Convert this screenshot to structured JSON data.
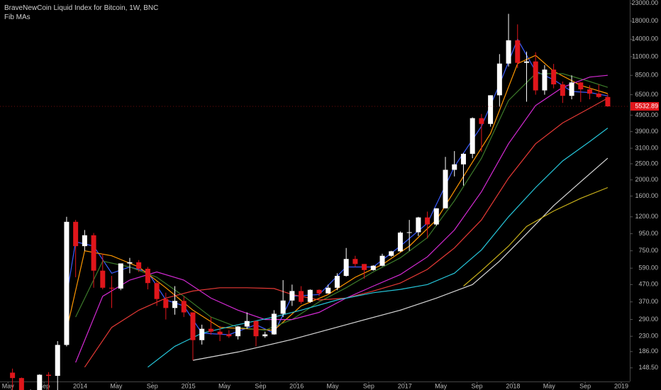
{
  "chart_data": {
    "type": "candlestick",
    "title": "BraveNewCoin Liquid Index for Bitcoin, 1W, BNC",
    "subtitle": "Fib MAs",
    "log_scale": true,
    "up_color": "#ffffff",
    "down_color": "#e0161b",
    "x": [
      "2013-05",
      "2013-06",
      "2013-07",
      "2013-08",
      "2013-09",
      "2013-10",
      "2013-11",
      "2013-12",
      "2014-01",
      "2014-02",
      "2014-03",
      "2014-04",
      "2014-05",
      "2014-06",
      "2014-07",
      "2014-08",
      "2014-09",
      "2014-10",
      "2014-11",
      "2014-12",
      "2015-01",
      "2015-02",
      "2015-03",
      "2015-04",
      "2015-05",
      "2015-06",
      "2015-07",
      "2015-08",
      "2015-09",
      "2015-10",
      "2015-11",
      "2015-12",
      "2016-01",
      "2016-02",
      "2016-03",
      "2016-04",
      "2016-05",
      "2016-06",
      "2016-07",
      "2016-08",
      "2016-09",
      "2016-10",
      "2016-11",
      "2016-12",
      "2017-01",
      "2017-02",
      "2017-03",
      "2017-04",
      "2017-05",
      "2017-06",
      "2017-07",
      "2017-08",
      "2017-09",
      "2017-10",
      "2017-11",
      "2017-12",
      "2018-01",
      "2018-02",
      "2018-03",
      "2018-04",
      "2018-05",
      "2018-06",
      "2018-07",
      "2018-08",
      "2018-09",
      "2018-10",
      "2018-11"
    ],
    "open": [
      139,
      129,
      97,
      106,
      135,
      133,
      204,
      1120,
      800,
      930,
      570,
      450,
      445,
      630,
      640,
      585,
      480,
      385,
      340,
      375,
      320,
      218,
      255,
      245,
      236,
      230,
      263,
      284,
      230,
      236,
      314,
      377,
      430,
      370,
      437,
      416,
      450,
      530,
      670,
      625,
      575,
      610,
      700,
      745,
      965,
      970,
      1190,
      1080,
      1350,
      2300,
      2480,
      2870,
      4700,
      4340,
      6450,
      10000,
      13800,
      10100,
      10300,
      6900,
      9200,
      7500,
      6400,
      7700,
      7000,
      6600,
      6300
    ],
    "high": [
      147,
      130,
      110,
      136,
      140,
      215,
      1200,
      1150,
      1000,
      960,
      720,
      530,
      630,
      680,
      660,
      600,
      490,
      420,
      460,
      400,
      320,
      270,
      300,
      265,
      250,
      265,
      320,
      285,
      245,
      330,
      500,
      470,
      460,
      440,
      440,
      470,
      550,
      780,
      700,
      625,
      615,
      720,
      750,
      980,
      1150,
      1200,
      1290,
      1350,
      2750,
      2980,
      2900,
      4750,
      4980,
      6450,
      11400,
      19900,
      17200,
      11800,
      11700,
      9800,
      9950,
      7800,
      8500,
      7750,
      7400,
      7500,
      6550
    ],
    "low": [
      90,
      88,
      65,
      100,
      85,
      105,
      200,
      520,
      750,
      450,
      440,
      340,
      435,
      550,
      560,
      440,
      350,
      290,
      310,
      300,
      165,
      205,
      235,
      215,
      225,
      220,
      255,
      200,
      225,
      235,
      300,
      350,
      360,
      365,
      400,
      415,
      435,
      525,
      600,
      510,
      570,
      605,
      690,
      740,
      750,
      920,
      890,
      1060,
      1350,
      2100,
      1850,
      2700,
      2950,
      4180,
      5500,
      9600,
      9400,
      5900,
      6500,
      6500,
      7100,
      5800,
      6100,
      5880,
      6100,
      6200,
      5500
    ],
    "close": [
      129,
      97,
      106,
      135,
      133,
      204,
      1120,
      800,
      930,
      570,
      450,
      445,
      630,
      640,
      585,
      480,
      385,
      340,
      375,
      320,
      218,
      255,
      245,
      236,
      230,
      263,
      284,
      230,
      236,
      314,
      377,
      430,
      370,
      437,
      416,
      450,
      530,
      670,
      625,
      575,
      610,
      700,
      745,
      965,
      970,
      1190,
      1080,
      1350,
      2300,
      2480,
      2870,
      4700,
      4340,
      6450,
      10000,
      13800,
      10100,
      10300,
      6900,
      9200,
      7500,
      6400,
      7700,
      7000,
      6600,
      6300,
      5532.89
    ],
    "last_price": 5532.89,
    "moving_averages": [
      {
        "color": "#3a5cff",
        "x": [
          "2013-11",
          "2013-12",
          "2014-02",
          "2014-04",
          "2014-06",
          "2014-08",
          "2014-10",
          "2014-12",
          "2015-02",
          "2015-05",
          "2015-08",
          "2015-10",
          "2015-12",
          "2016-03",
          "2016-06",
          "2016-09",
          "2016-12",
          "2017-03",
          "2017-06",
          "2017-09",
          "2017-11",
          "2018-01",
          "2018-03",
          "2018-05",
          "2018-07",
          "2018-09",
          "2018-11"
        ],
        "values": [
          400,
          850,
          800,
          550,
          600,
          560,
          380,
          350,
          240,
          235,
          270,
          240,
          400,
          410,
          600,
          600,
          800,
          1100,
          2400,
          4200,
          7500,
          14000,
          9000,
          8000,
          6800,
          6700,
          6400
        ]
      },
      {
        "color": "#ff9800",
        "x": [
          "2013-11",
          "2014-01",
          "2014-04",
          "2014-07",
          "2014-10",
          "2015-01",
          "2015-04",
          "2015-07",
          "2015-10",
          "2016-01",
          "2016-04",
          "2016-07",
          "2016-10",
          "2017-01",
          "2017-04",
          "2017-07",
          "2017-10",
          "2018-01",
          "2018-03",
          "2018-05",
          "2018-08",
          "2018-11"
        ],
        "values": [
          250,
          750,
          700,
          600,
          450,
          330,
          260,
          255,
          250,
          350,
          410,
          520,
          620,
          800,
          1150,
          2100,
          3800,
          10000,
          11200,
          9000,
          7400,
          6600
        ]
      },
      {
        "color": "#3c7a2a",
        "x": [
          "2013-12",
          "2014-03",
          "2014-06",
          "2014-09",
          "2014-12",
          "2015-03",
          "2015-06",
          "2015-09",
          "2015-12",
          "2016-03",
          "2016-06",
          "2016-09",
          "2016-12",
          "2017-03",
          "2017-06",
          "2017-09",
          "2017-12",
          "2018-03",
          "2018-06",
          "2018-09",
          "2018-11"
        ],
        "values": [
          300,
          650,
          600,
          520,
          400,
          300,
          260,
          250,
          290,
          370,
          450,
          560,
          680,
          900,
          1500,
          2700,
          6000,
          8700,
          8700,
          7800,
          7200
        ]
      },
      {
        "color": "#d42ad4",
        "x": [
          "2013-12",
          "2014-03",
          "2014-06",
          "2014-09",
          "2014-12",
          "2015-03",
          "2015-06",
          "2015-09",
          "2015-12",
          "2016-03",
          "2016-06",
          "2016-09",
          "2016-12",
          "2017-03",
          "2017-06",
          "2017-09",
          "2017-12",
          "2018-03",
          "2018-06",
          "2018-09",
          "2018-11"
        ],
        "values": [
          160,
          400,
          500,
          560,
          500,
          390,
          330,
          290,
          290,
          320,
          390,
          460,
          540,
          690,
          1000,
          1700,
          3300,
          5600,
          7200,
          8300,
          8500
        ]
      },
      {
        "color": "#e53935",
        "x": [
          "2014-01",
          "2014-04",
          "2014-07",
          "2014-10",
          "2015-01",
          "2015-04",
          "2015-07",
          "2015-10",
          "2015-12",
          "2016-03",
          "2016-06",
          "2016-09",
          "2016-12",
          "2017-03",
          "2017-06",
          "2017-09",
          "2017-12",
          "2018-03",
          "2018-06",
          "2018-09",
          "2018-11"
        ],
        "values": [
          150,
          260,
          330,
          390,
          430,
          450,
          450,
          445,
          410,
          380,
          390,
          430,
          480,
          580,
          780,
          1150,
          2050,
          3300,
          4400,
          5400,
          6200
        ]
      },
      {
        "color": "#26c6da",
        "x": [
          "2014-08",
          "2014-11",
          "2015-02",
          "2015-06",
          "2015-10",
          "2016-01",
          "2016-05",
          "2016-09",
          "2016-12",
          "2017-03",
          "2017-06",
          "2017-09",
          "2017-12",
          "2018-03",
          "2018-06",
          "2018-09",
          "2018-11"
        ],
        "values": [
          150,
          200,
          240,
          270,
          300,
          330,
          380,
          420,
          440,
          470,
          550,
          760,
          1200,
          1800,
          2600,
          3400,
          4100
        ]
      },
      {
        "color": "#d8d8d8",
        "x": [
          "2015-01",
          "2015-06",
          "2015-12",
          "2016-06",
          "2016-12",
          "2017-04",
          "2017-08",
          "2017-11",
          "2018-02",
          "2018-05",
          "2018-08",
          "2018-11"
        ],
        "values": [
          165,
          185,
          220,
          270,
          330,
          390,
          470,
          650,
          950,
          1400,
          1950,
          2700
        ]
      },
      {
        "color": "#c9b11a",
        "x": [
          "2017-07",
          "2017-09",
          "2017-12",
          "2018-02",
          "2018-05",
          "2018-08",
          "2018-11"
        ],
        "values": [
          460,
          570,
          800,
          1050,
          1300,
          1550,
          1800
        ]
      }
    ],
    "xticks": [
      {
        "value": "2013-05",
        "label": "May"
      },
      {
        "value": "2013-09",
        "label": "Sep"
      },
      {
        "value": "2014-01",
        "label": "2014"
      },
      {
        "value": "2014-05",
        "label": "May"
      },
      {
        "value": "2014-09",
        "label": "Sep"
      },
      {
        "value": "2015-01",
        "label": "2015"
      },
      {
        "value": "2015-05",
        "label": "May"
      },
      {
        "value": "2015-09",
        "label": "Sep"
      },
      {
        "value": "2016-01",
        "label": "2016"
      },
      {
        "value": "2016-05",
        "label": "May"
      },
      {
        "value": "2016-09",
        "label": "Sep"
      },
      {
        "value": "2017-01",
        "label": "2017"
      },
      {
        "value": "2017-05",
        "label": "May"
      },
      {
        "value": "2017-09",
        "label": "Sep"
      },
      {
        "value": "2018-01",
        "label": "2018"
      },
      {
        "value": "2018-05",
        "label": "May"
      },
      {
        "value": "2018-09",
        "label": "Sep"
      },
      {
        "value": "2019-01",
        "label": "2019"
      }
    ],
    "ylim": [
      123,
      24100
    ],
    "yticks": [
      {
        "value": 148.5,
        "label": "148.50"
      },
      {
        "value": 186,
        "label": "186.00"
      },
      {
        "value": 230,
        "label": "230.00"
      },
      {
        "value": 290,
        "label": "290.00"
      },
      {
        "value": 370,
        "label": "370.00"
      },
      {
        "value": 470,
        "label": "470.00"
      },
      {
        "value": 590,
        "label": "590.00"
      },
      {
        "value": 750,
        "label": "750.00"
      },
      {
        "value": 950,
        "label": "950.00"
      },
      {
        "value": 1200,
        "label": "1200.00"
      },
      {
        "value": 1600,
        "label": "1600.00"
      },
      {
        "value": 2000,
        "label": "2000.00"
      },
      {
        "value": 2500,
        "label": "2500.00"
      },
      {
        "value": 3100,
        "label": "3100.00"
      },
      {
        "value": 3900,
        "label": "3900.00"
      },
      {
        "value": 4900,
        "label": "4900.00"
      },
      {
        "value": 6500,
        "label": "6500.00"
      },
      {
        "value": 8500,
        "label": "8500.00"
      },
      {
        "value": 11000,
        "label": "11000.00"
      },
      {
        "value": 14000,
        "label": "14000.00"
      },
      {
        "value": 18000,
        "label": "18000.00"
      },
      {
        "value": 23000,
        "label": "23000.00"
      }
    ]
  }
}
